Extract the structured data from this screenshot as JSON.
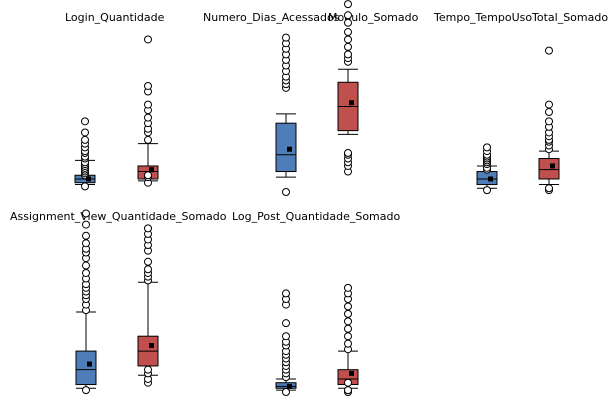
{
  "colors": {
    "series_a": "#4f7db8",
    "series_b": "#c0504d",
    "outlier_fill": "#ffffff",
    "stroke": "#000000"
  },
  "chart_data": [
    {
      "type": "box",
      "title": "Login_Quantidade",
      "series": [
        {
          "color": "#4f7db8",
          "whisker_low": 0.04,
          "q1": 0.05,
          "median": 0.07,
          "q3": 0.09,
          "whisker_high": 0.17,
          "mean": 0.07,
          "outliers": [
            0.03,
            0.09,
            0.1,
            0.11,
            0.12,
            0.13,
            0.14,
            0.15,
            0.16,
            0.18,
            0.19,
            0.21,
            0.22,
            0.24,
            0.26,
            0.28,
            0.32,
            0.38
          ]
        },
        {
          "color": "#c0504d",
          "whisker_low": 0.06,
          "q1": 0.07,
          "median": 0.11,
          "q3": 0.14,
          "whisker_high": 0.26,
          "mean": 0.12,
          "outliers": [
            0.05,
            0.08,
            0.09,
            0.28,
            0.32,
            0.34,
            0.37,
            0.4,
            0.44,
            0.47,
            0.54,
            0.57,
            0.82
          ]
        }
      ]
    },
    {
      "type": "box",
      "title": "Numero_Dias_Acessados",
      "series": [
        {
          "color": "#4f7db8",
          "whisker_low": 0.08,
          "q1": 0.11,
          "median": 0.2,
          "q3": 0.37,
          "whisker_high": 0.42,
          "mean": 0.23,
          "outliers": [
            0.0,
            0.56,
            0.58,
            0.6,
            0.62,
            0.65,
            0.68,
            0.71,
            0.74,
            0.77,
            0.8,
            0.83
          ]
        },
        {
          "color": "#c0504d",
          "whisker_low": 0.31,
          "q1": 0.33,
          "median": 0.46,
          "q3": 0.59,
          "whisker_high": 0.66,
          "mean": 0.48,
          "outliers": [
            0.11,
            0.14,
            0.16,
            0.18,
            0.2,
            0.21,
            0.7,
            0.72,
            0.74,
            0.78,
            0.82,
            0.86,
            0.91,
            0.95,
            1.01
          ]
        }
      ]
    },
    {
      "type": "box",
      "title": "Modulo_Somado",
      "series": []
    },
    {
      "type": "box",
      "title": "Tempo_TempoUso",
      "series": []
    },
    {
      "type": "box",
      "title": "Total_Somado",
      "series": [
        {
          "color": "#4f7db8",
          "whisker_low": 0.02,
          "q1": 0.04,
          "median": 0.07,
          "q3": 0.11,
          "whisker_high": 0.14,
          "mean": 0.07,
          "outliers": [
            0.01,
            0.12,
            0.13,
            0.15,
            0.16,
            0.17,
            0.18,
            0.19,
            0.2,
            0.22,
            0.24
          ]
        },
        {
          "color": "#c0504d",
          "whisker_low": 0.04,
          "q1": 0.07,
          "median": 0.12,
          "q3": 0.18,
          "whisker_high": 0.22,
          "mean": 0.14,
          "outliers": [
            0.01,
            0.02,
            0.23,
            0.25,
            0.27,
            0.28,
            0.3,
            0.32,
            0.35,
            0.38,
            0.43,
            0.47,
            0.76
          ]
        }
      ]
    },
    {
      "type": "box",
      "title": "Assignment_View_Quantidade_Somado",
      "series": [
        {
          "color": "#4f7db8",
          "whisker_low": 0.02,
          "q1": 0.04,
          "median": 0.12,
          "q3": 0.22,
          "whisker_high": 0.43,
          "mean": 0.15,
          "outliers": [
            0.01,
            0.44,
            0.47,
            0.5,
            0.52,
            0.54,
            0.56,
            0.58,
            0.61,
            0.64,
            0.68,
            0.72,
            0.75,
            0.77,
            0.8,
            0.84,
            0.9,
            0.96
          ]
        },
        {
          "color": "#c0504d",
          "whisker_low": 0.09,
          "q1": 0.14,
          "median": 0.22,
          "q3": 0.3,
          "whisker_high": 0.59,
          "mean": 0.25,
          "outliers": [
            0.05,
            0.07,
            0.1,
            0.12,
            0.6,
            0.62,
            0.64,
            0.66,
            0.7,
            0.76,
            0.79,
            0.82,
            0.85,
            0.88
          ]
        }
      ]
    },
    {
      "type": "box",
      "title": "Log_Post_Quantidade_Somado",
      "series": [
        {
          "color": "#4f7db8",
          "whisker_low": 0.01,
          "q1": 0.02,
          "median": 0.03,
          "q3": 0.05,
          "whisker_high": 0.07,
          "mean": 0.03,
          "outliers": [
            0.0,
            0.08,
            0.1,
            0.12,
            0.14,
            0.16,
            0.18,
            0.2,
            0.22,
            0.25,
            0.27,
            0.3,
            0.37,
            0.47,
            0.5,
            0.53
          ]
        },
        {
          "color": "#c0504d",
          "whisker_low": 0.02,
          "q1": 0.04,
          "median": 0.07,
          "q3": 0.12,
          "whisker_high": 0.22,
          "mean": 0.1,
          "outliers": [
            0.0,
            0.01,
            0.05,
            0.23,
            0.26,
            0.3,
            0.34,
            0.38,
            0.42,
            0.46,
            0.5,
            0.53,
            0.56
          ]
        }
      ]
    }
  ]
}
